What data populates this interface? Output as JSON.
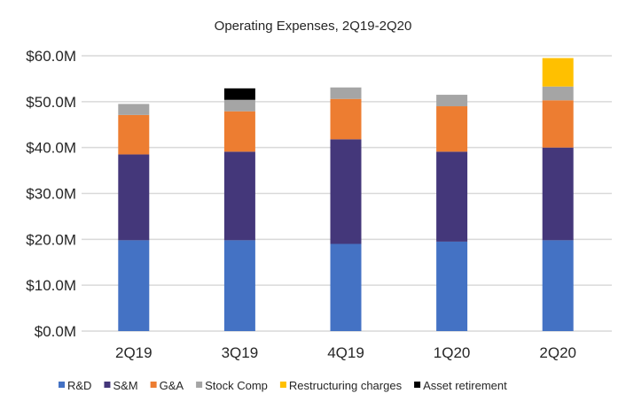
{
  "chart_data": {
    "type": "bar",
    "stacked": true,
    "title": "Operating Expenses, 2Q19-2Q20",
    "xlabel": "",
    "ylabel": "",
    "ylim": [
      0,
      60
    ],
    "yticks": [
      "$0.0M",
      "$10.0M",
      "$20.0M",
      "$30.0M",
      "$40.0M",
      "$50.0M",
      "$60.0M"
    ],
    "ytick_values": [
      0,
      10,
      20,
      30,
      40,
      50,
      60
    ],
    "categories": [
      "2Q19",
      "3Q19",
      "4Q19",
      "1Q20",
      "2Q20"
    ],
    "grid": true,
    "legend_position": "bottom",
    "series": [
      {
        "name": "R&D",
        "color": "#4472C4",
        "values": [
          19.8,
          19.8,
          19.0,
          19.5,
          19.8
        ]
      },
      {
        "name": "S&M",
        "color": "#44377A",
        "values": [
          18.7,
          19.3,
          22.8,
          19.6,
          20.2
        ]
      },
      {
        "name": "G&A",
        "color": "#ED7D31",
        "values": [
          8.6,
          8.8,
          8.8,
          9.9,
          10.3
        ]
      },
      {
        "name": "Stock Comp",
        "color": "#A5A5A5",
        "values": [
          2.4,
          2.5,
          2.5,
          2.5,
          3.0
        ]
      },
      {
        "name": "Restructuring charges",
        "color": "#FFC000",
        "values": [
          0,
          0,
          0,
          0,
          6.2
        ]
      },
      {
        "name": "Asset retirement",
        "color": "#000000",
        "values": [
          0,
          2.5,
          0,
          0,
          0
        ]
      }
    ]
  }
}
